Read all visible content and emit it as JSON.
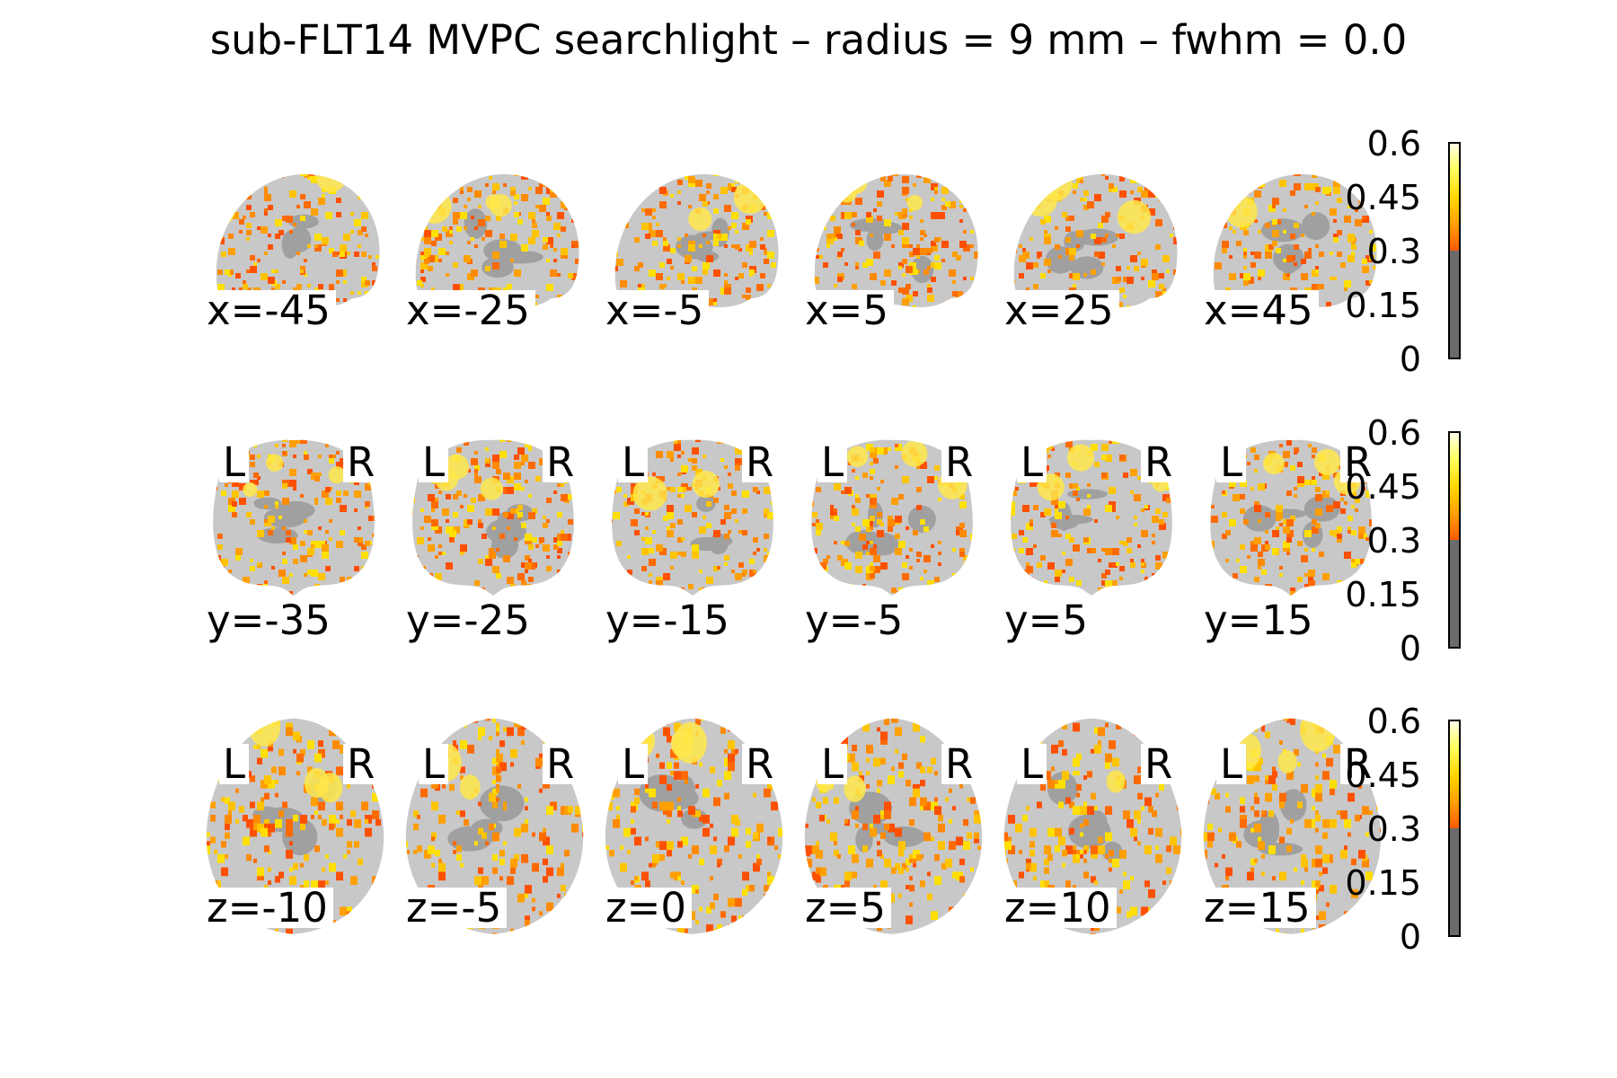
{
  "title": "sub-FLT14 MVPC searchlight – radius = 9 mm – fwhm = 0.0",
  "rows": [
    {
      "view": "sagittal",
      "show_orientation": false,
      "slices": [
        "x=-45",
        "x=-25",
        "x=-5",
        "x=5",
        "x=25",
        "x=45"
      ]
    },
    {
      "view": "coronal",
      "show_orientation": true,
      "slices": [
        "y=-35",
        "y=-25",
        "y=-15",
        "y=-5",
        "y=5",
        "y=15"
      ]
    },
    {
      "view": "axial",
      "show_orientation": true,
      "slices": [
        "z=-10",
        "z=-5",
        "z=0",
        "z=5",
        "z=10",
        "z=15"
      ]
    }
  ],
  "orientation": {
    "left": "L",
    "right": "R"
  },
  "colorbar": {
    "ticks": [
      "0.6",
      "0.45",
      "0.3",
      "0.15",
      "0"
    ],
    "min": 0,
    "max": 0.6,
    "threshold": 0.3,
    "below_threshold_color": "#6b6b6b",
    "colormap": "hot"
  },
  "colors": {
    "background": "#ffffff",
    "brain": "#c8c8c8",
    "overlay_low": "#ff6a00",
    "overlay_high": "#ffff70"
  }
}
